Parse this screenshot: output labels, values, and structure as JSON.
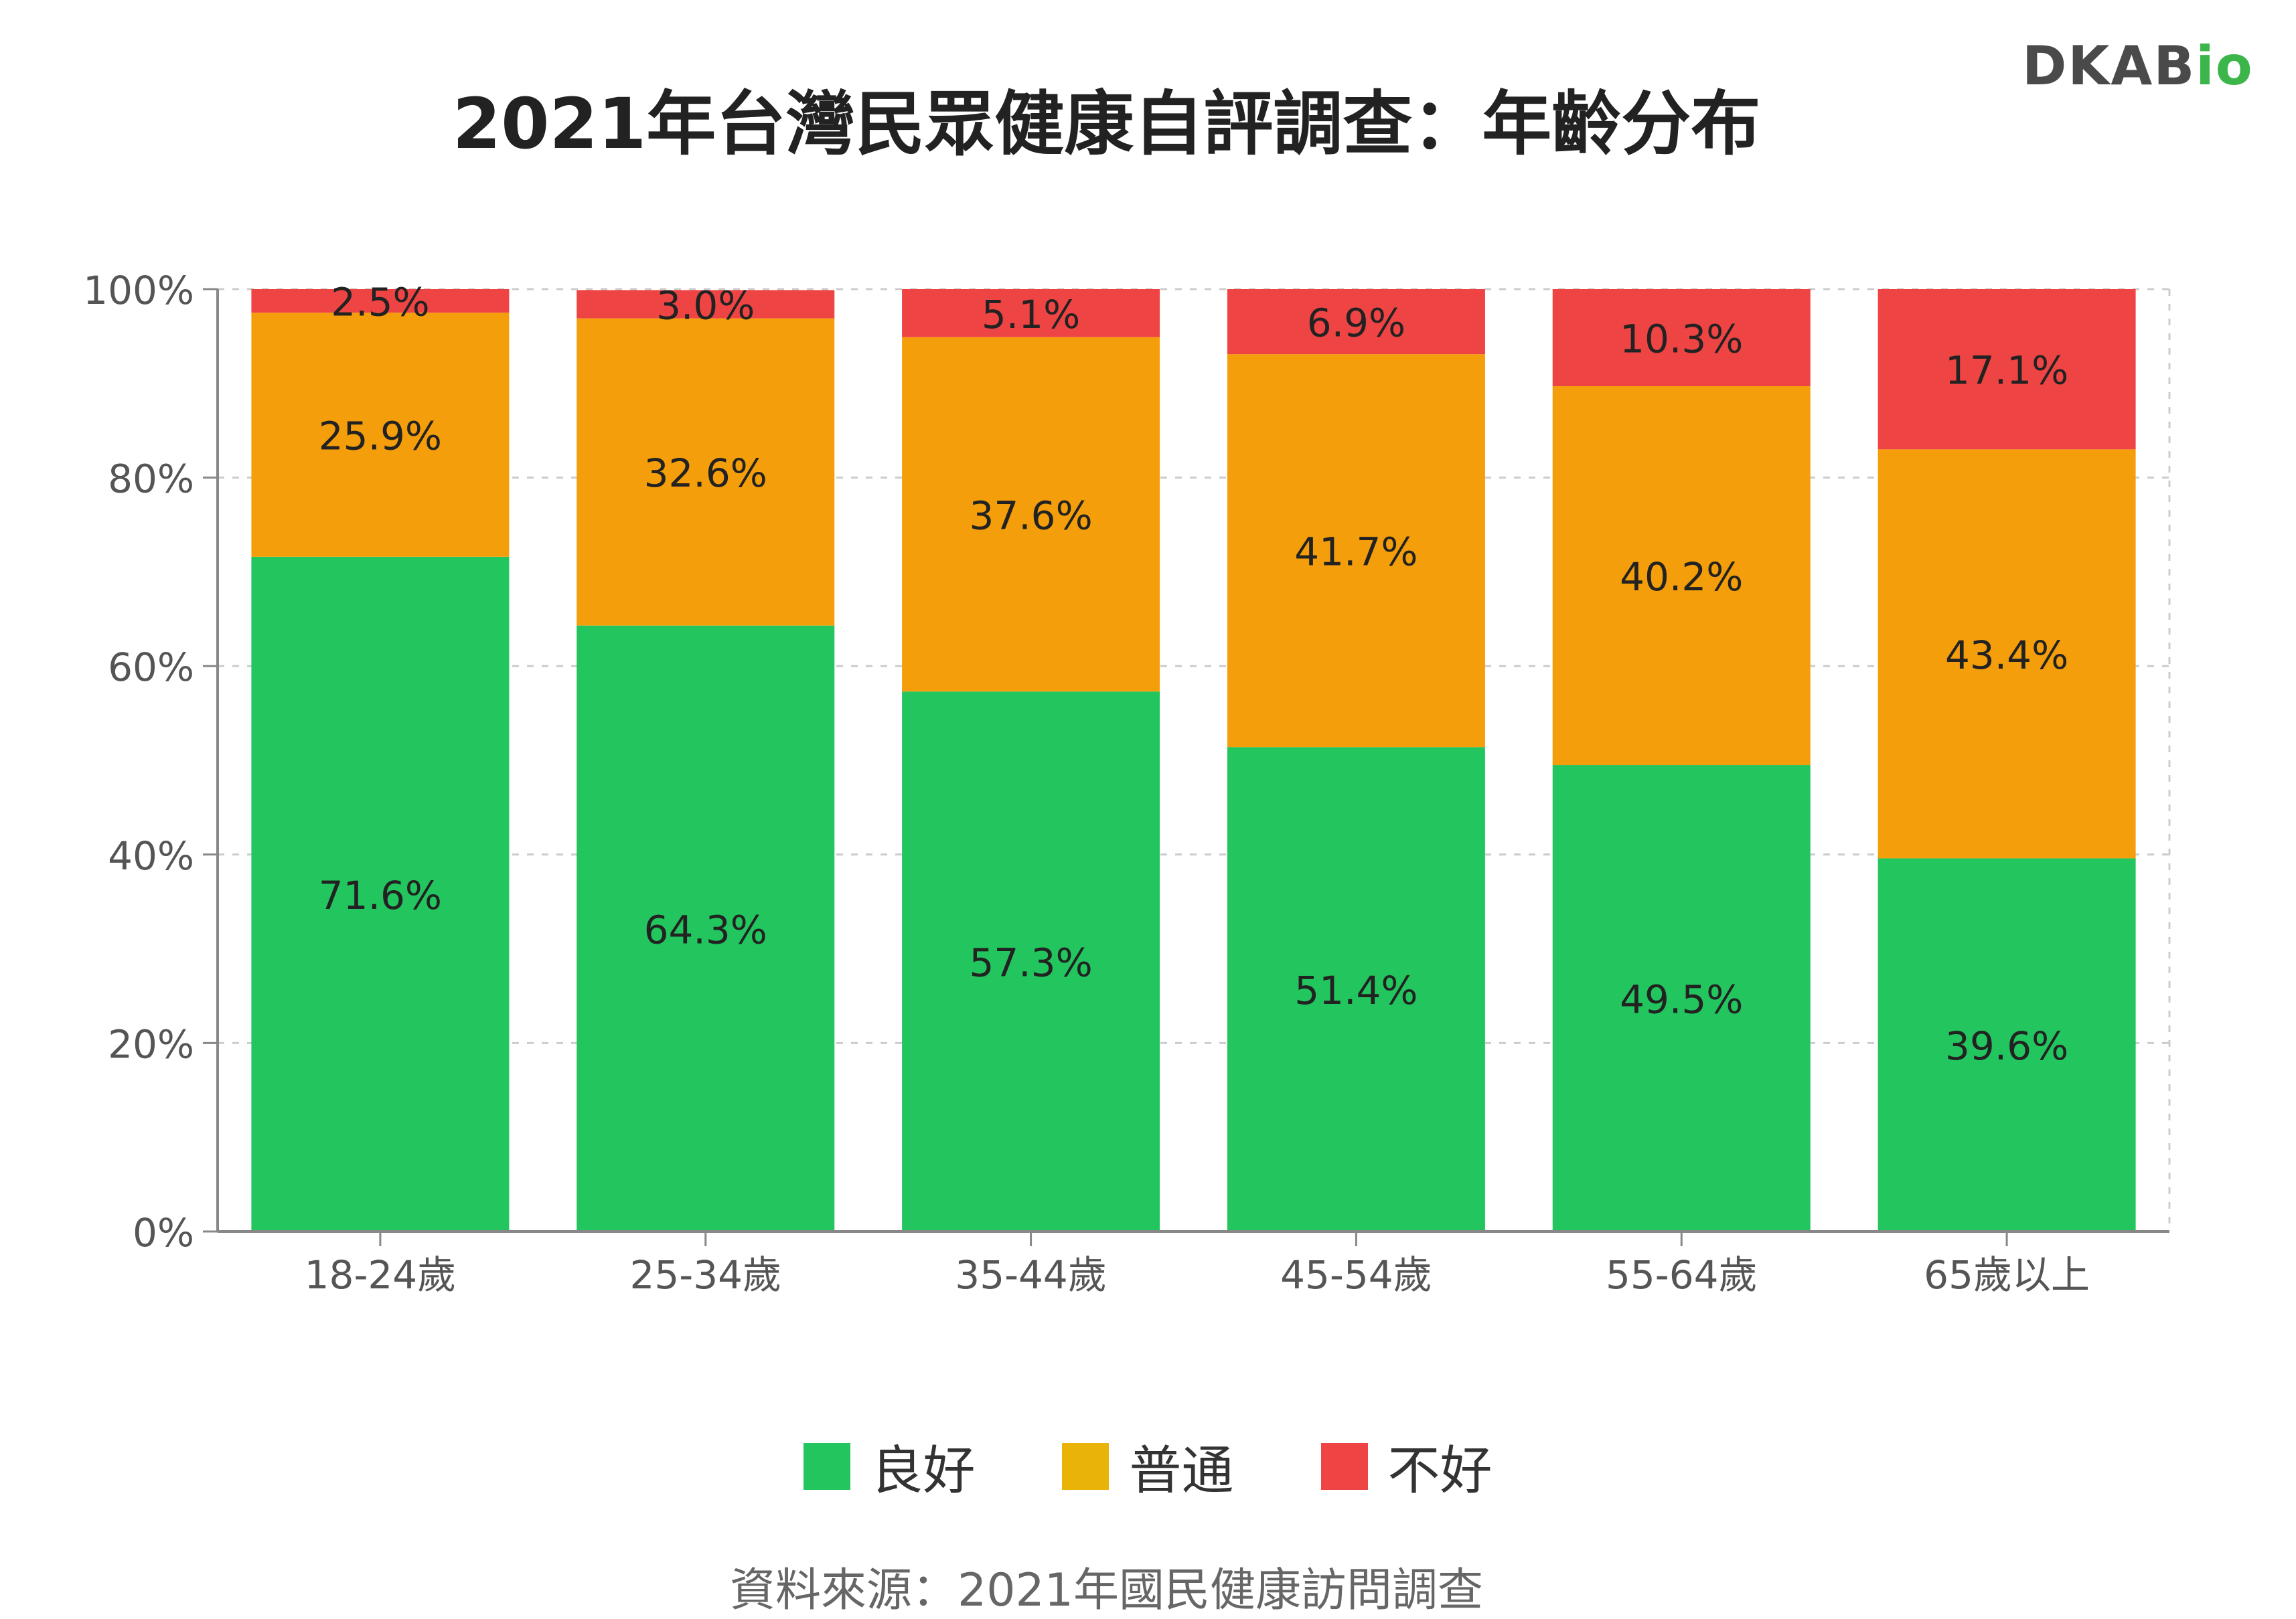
{
  "title": "2021年台灣民眾健康自評調查：年齡分布",
  "brand": {
    "main": "DKAB",
    "accent": "io",
    "main_color": "#4a4a4a",
    "accent_color": "#3cb64a"
  },
  "source": "資料來源：2021年國民健康訪問調查",
  "chart_data": {
    "type": "bar",
    "stacked": true,
    "categories": [
      "18-24歲",
      "25-34歲",
      "35-44歲",
      "45-54歲",
      "55-64歲",
      "65歲以上"
    ],
    "series": [
      {
        "name": "良好",
        "color": "#22c55e",
        "values": [
          71.6,
          64.3,
          57.3,
          51.4,
          49.5,
          39.6
        ],
        "labels": [
          "71.6%",
          "64.3%",
          "57.3%",
          "51.4%",
          "49.5%",
          "39.6%"
        ]
      },
      {
        "name": "普通",
        "color": "#f59e0b",
        "values": [
          25.9,
          32.6,
          37.6,
          41.7,
          40.2,
          43.4
        ],
        "labels": [
          "25.9%",
          "32.6%",
          "37.6%",
          "41.7%",
          "40.2%",
          "43.4%"
        ]
      },
      {
        "name": "不好",
        "color": "#ef4444",
        "values": [
          2.5,
          3.0,
          5.1,
          6.9,
          10.3,
          17.1
        ],
        "labels": [
          "2.5%",
          "3.0%",
          "5.1%",
          "6.9%",
          "10.3%",
          "17.1%"
        ]
      }
    ],
    "ylim": [
      0,
      100
    ],
    "yticks": [
      0,
      20,
      40,
      60,
      80,
      100
    ],
    "ytick_labels": [
      "0%",
      "20%",
      "40%",
      "60%",
      "80%",
      "100%"
    ],
    "grid": true,
    "legend_position": "bottom",
    "legend_swatch_colors": [
      "#22c55e",
      "#eab308",
      "#ef4444"
    ]
  }
}
